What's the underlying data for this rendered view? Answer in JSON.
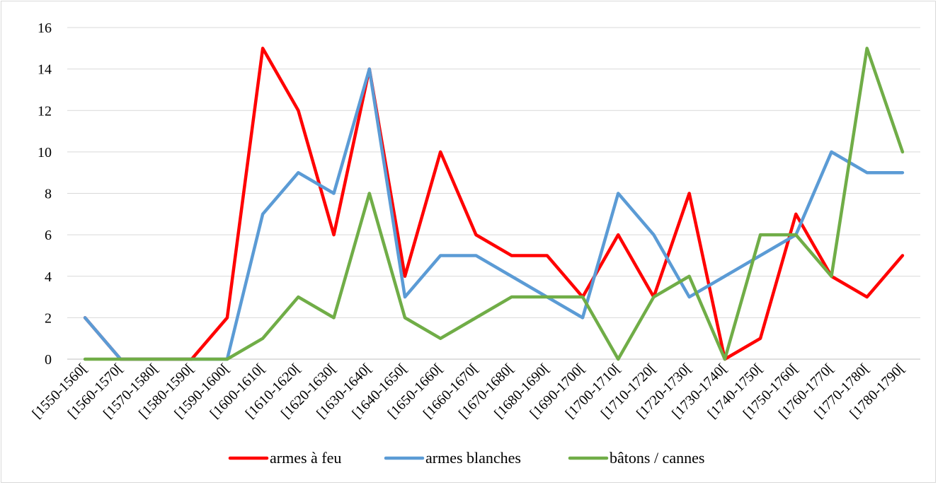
{
  "chart_data": {
    "type": "line",
    "title": "",
    "xlabel": "",
    "ylabel": "",
    "ylim": [
      0,
      16
    ],
    "yticks": [
      "0",
      "2",
      "4",
      "6",
      "8",
      "10",
      "12",
      "14",
      "16"
    ],
    "grid": "horizontal",
    "legend_position": "bottom",
    "categories": [
      "[1550-1560[",
      "[1560-1570[",
      "[1570-1580[",
      "[1580-1590[",
      "[1590-1600[",
      "[1600-1610[",
      "[1610-1620[",
      "[1620-1630[",
      "[1630-1640[",
      "[1640-1650[",
      "[1650-1660[",
      "[1660-1670[",
      "[1670-1680[",
      "[1680-1690[",
      "[1690-1700[",
      "[1700-1710[",
      "[1710-1720[",
      "[1720-1730[",
      "[1730-1740[",
      "[1740-1750[",
      "[1750-1760[",
      "[1760-1770[",
      "[1770-1780[",
      "[1780-1790["
    ],
    "series": [
      {
        "name": "armes à feu",
        "color": "#ff0000",
        "values": [
          2,
          0,
          0,
          0,
          2,
          15,
          12,
          6,
          14,
          4,
          10,
          6,
          5,
          5,
          3,
          6,
          3,
          8,
          0,
          1,
          7,
          4,
          3,
          5
        ]
      },
      {
        "name": "armes blanches",
        "color": "#5b9bd5",
        "values": [
          2,
          0,
          0,
          0,
          0,
          7,
          9,
          8,
          14,
          3,
          5,
          5,
          4,
          3,
          2,
          8,
          6,
          3,
          4,
          5,
          6,
          10,
          9,
          9
        ]
      },
      {
        "name": "bâtons / cannes",
        "color": "#70ad47",
        "values": [
          0,
          0,
          0,
          0,
          0,
          1,
          3,
          2,
          8,
          2,
          1,
          2,
          3,
          3,
          3,
          0,
          3,
          4,
          0,
          6,
          6,
          4,
          15,
          10
        ]
      }
    ]
  }
}
